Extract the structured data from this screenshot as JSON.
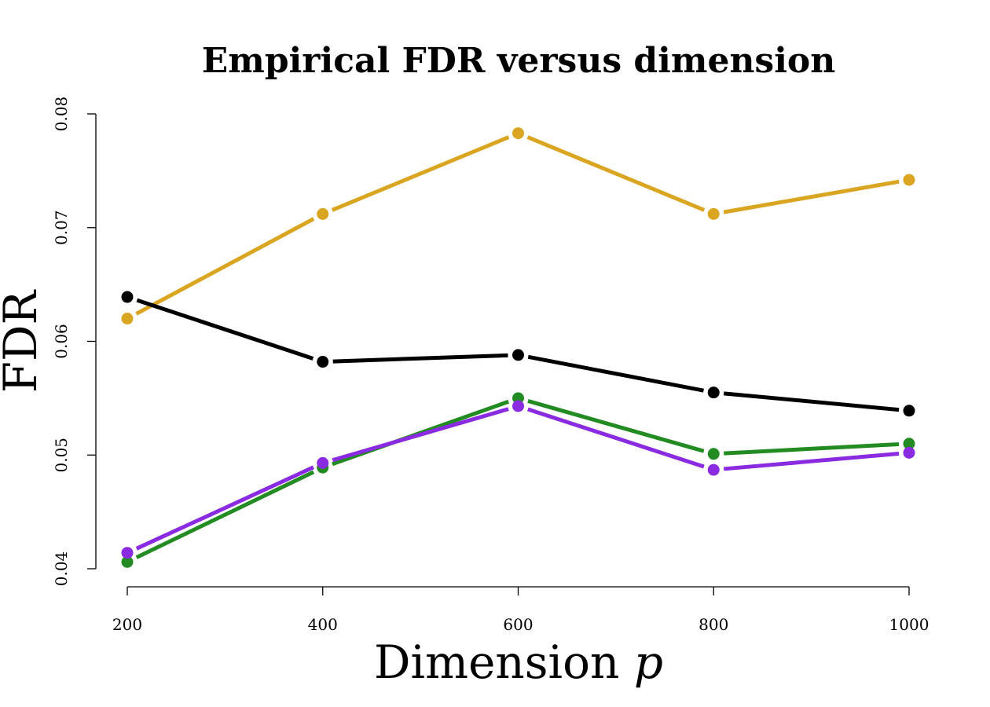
{
  "chart_data": {
    "type": "line",
    "title": "Empirical FDR versus dimension",
    "xlabel": "Dimension",
    "xlabel_var": "p",
    "ylabel": "FDR",
    "x": [
      200,
      400,
      600,
      800,
      1000
    ],
    "x_tick_labels": [
      "200",
      "400",
      "600",
      "800",
      "1000"
    ],
    "y_ticks": [
      0.04,
      0.05,
      0.06,
      0.07,
      0.08
    ],
    "y_tick_labels": [
      "0.04",
      "0.05",
      "0.06",
      "0.07",
      "0.08"
    ],
    "xlim": [
      200,
      1000
    ],
    "ylim": [
      0.04,
      0.08
    ],
    "grid": false,
    "legend": "none",
    "series": [
      {
        "color": "#DAA520",
        "values": [
          0.062,
          0.0712,
          0.0783,
          0.0712,
          0.0742
        ]
      },
      {
        "color": "#000000",
        "values": [
          0.0639,
          0.0582,
          0.0588,
          0.0555,
          0.0539
        ]
      },
      {
        "color": "#228B22",
        "values": [
          0.0406,
          0.0489,
          0.055,
          0.0501,
          0.051
        ]
      },
      {
        "color": "#8A2BE2",
        "values": [
          0.0414,
          0.0493,
          0.0543,
          0.0487,
          0.0502
        ]
      }
    ]
  }
}
